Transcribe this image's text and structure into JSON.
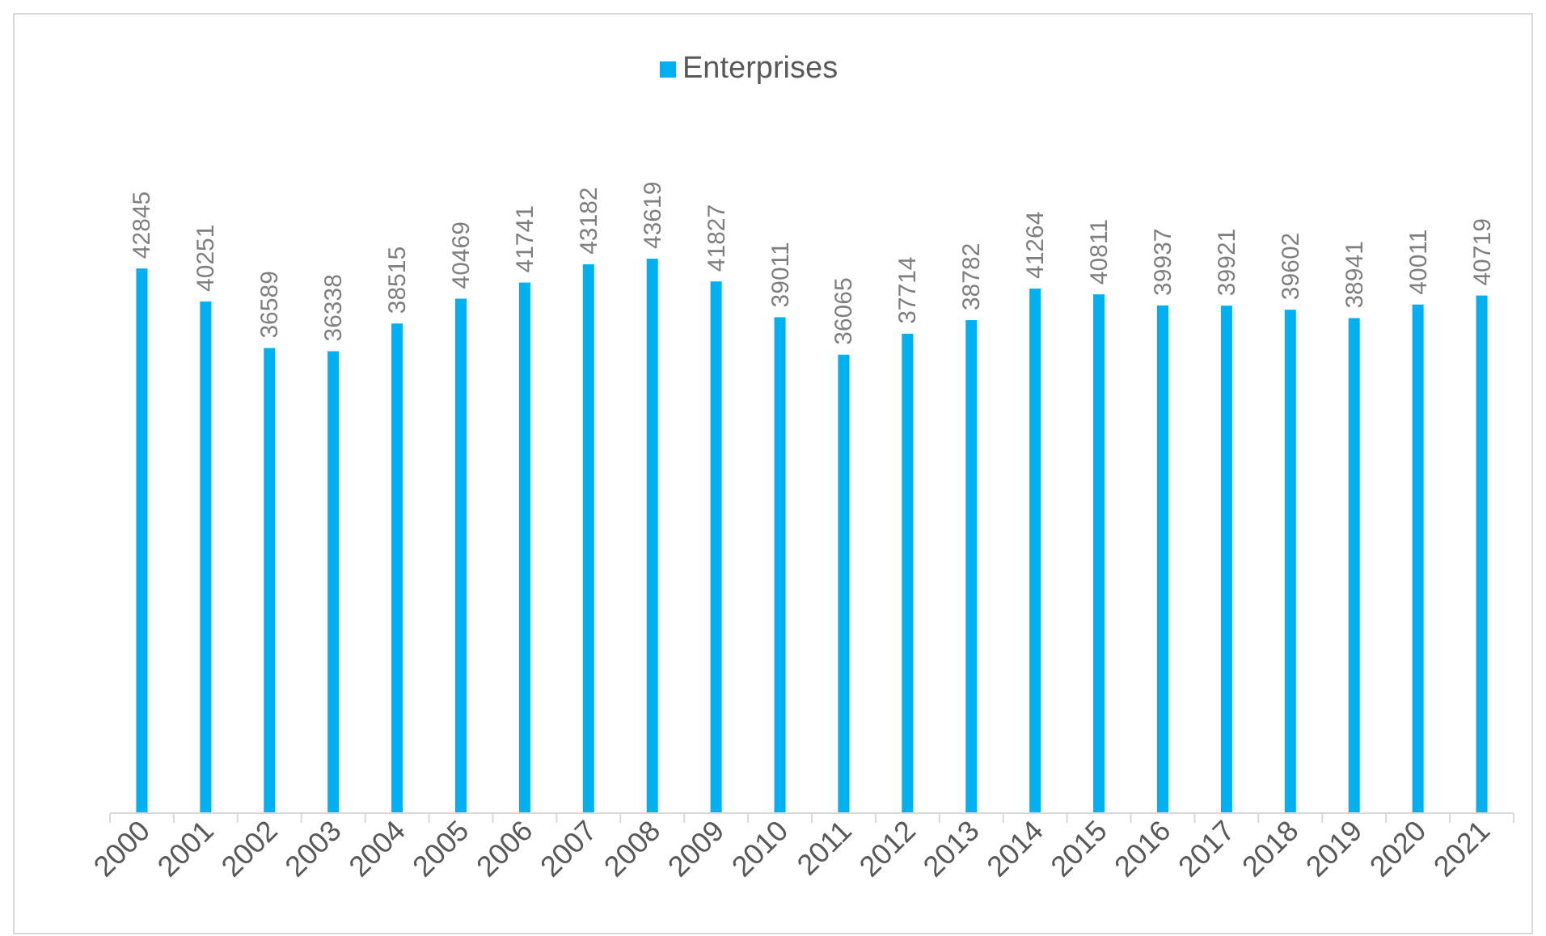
{
  "chart_data": {
    "type": "bar",
    "categories": [
      "2000",
      "2001",
      "2002",
      "2003",
      "2004",
      "2005",
      "2006",
      "2007",
      "2008",
      "2009",
      "2010",
      "2011",
      "2012",
      "2013",
      "2014",
      "2015",
      "2016",
      "2017",
      "2018",
      "2019",
      "2020",
      "2021"
    ],
    "series": [
      {
        "name": "Enterprises",
        "color": "#00b0f0",
        "values": [
          42845,
          40251,
          36589,
          36338,
          38515,
          40469,
          41741,
          43182,
          43619,
          41827,
          39011,
          36065,
          37714,
          38782,
          41264,
          40811,
          39937,
          39921,
          39602,
          38941,
          40011,
          40719
        ]
      }
    ],
    "data_labels": true,
    "legend": "top",
    "tick_labels": "x",
    "grid": false
  }
}
